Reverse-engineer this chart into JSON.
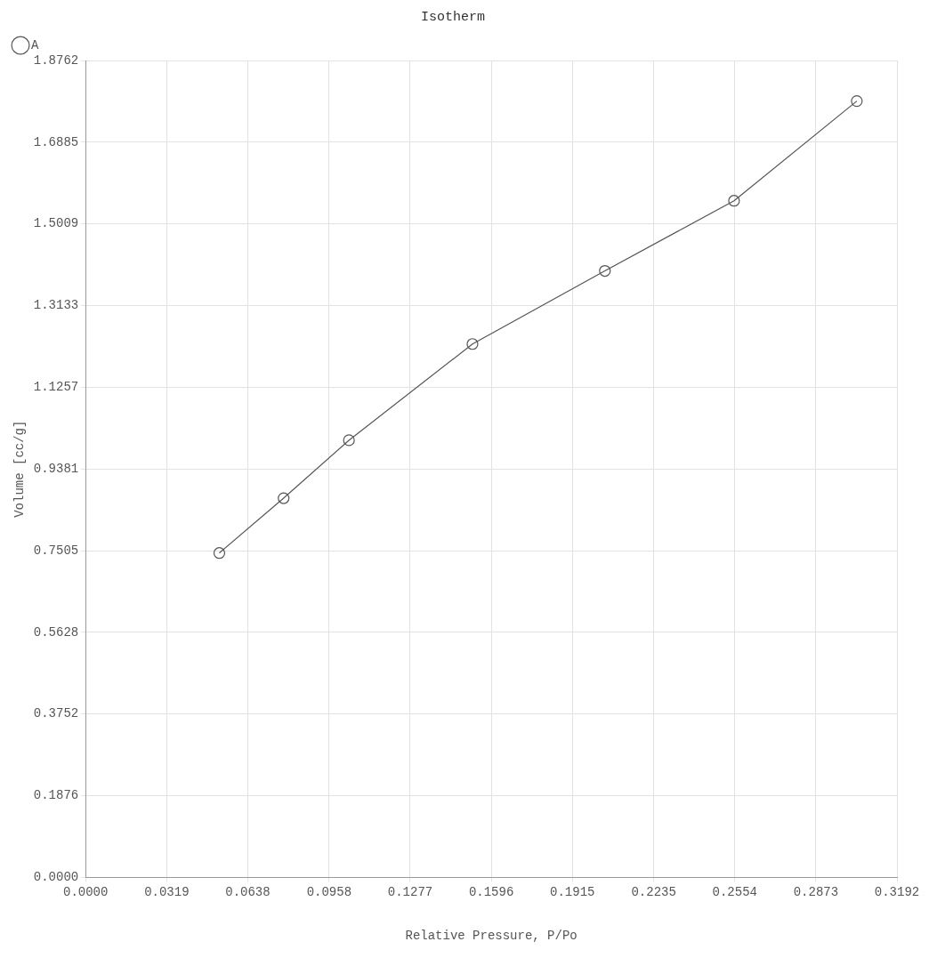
{
  "chart_data": {
    "type": "line",
    "title": "Isotherm",
    "xlabel": "Relative Pressure, P/Po",
    "ylabel": "Volume [cc/g]",
    "series": [
      {
        "name": "A",
        "color": "#555555",
        "x": [
          0.0526,
          0.0779,
          0.1036,
          0.1522,
          0.2043,
          0.2551,
          0.3034
        ],
        "values": [
          0.745,
          0.871,
          1.004,
          1.225,
          1.393,
          1.554,
          1.783
        ]
      }
    ],
    "xlim": [
      0,
      0.3192
    ],
    "xticks": [
      {
        "value": 0,
        "label": "0.0000"
      },
      0.0319,
      0.0638,
      0.0958,
      0.1277,
      0.1596,
      0.1915,
      0.2235,
      0.2554,
      0.2873,
      0.3192
    ],
    "ylim": [
      0,
      1.8762
    ],
    "yticks": [
      {
        "value": 0,
        "label": "0.0000"
      },
      0.1876,
      0.3752,
      0.5628,
      0.7505,
      0.9381,
      1.1257,
      1.3133,
      1.5009,
      1.6885,
      1.8762
    ],
    "grid": true,
    "legend": "top left",
    "marker": "circle",
    "line_style": "solid"
  }
}
